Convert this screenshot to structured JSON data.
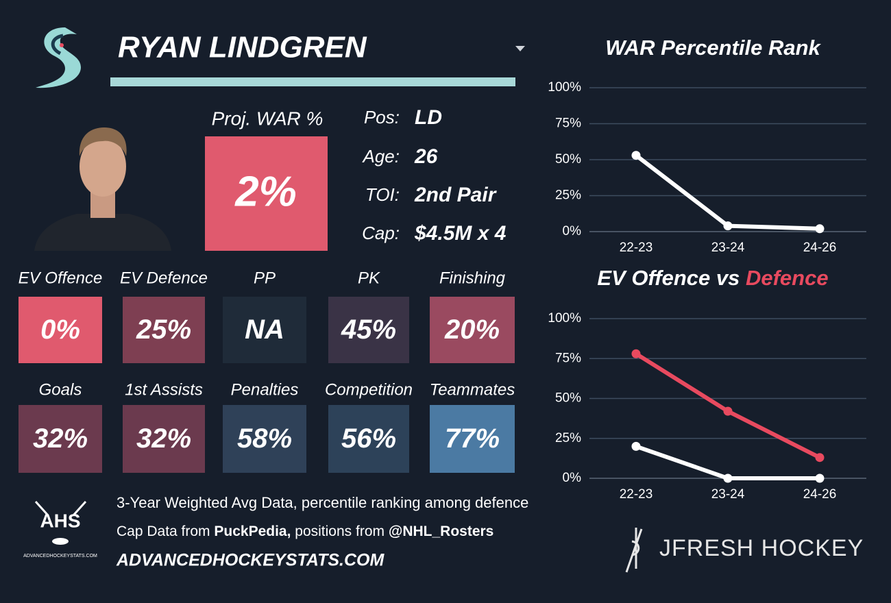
{
  "header": {
    "name": "RYAN LINDGREN"
  },
  "proj_war": {
    "label": "Proj. WAR %",
    "value": "2%",
    "color": "#e05a6e"
  },
  "info": [
    {
      "label": "Pos:",
      "value": "LD"
    },
    {
      "label": "Age:",
      "value": "26"
    },
    {
      "label": "TOI:",
      "value": "2nd Pair"
    },
    {
      "label": "Cap:",
      "value": "$4.5M x 4"
    }
  ],
  "tiles": [
    {
      "label": "EV Offence",
      "value": "0%",
      "color": "#e05a6e"
    },
    {
      "label": "EV Defence",
      "value": "25%",
      "color": "#7e3f52"
    },
    {
      "label": "PP",
      "value": "NA",
      "color": "#1f2b39"
    },
    {
      "label": "PK",
      "value": "45%",
      "color": "#3a3346"
    },
    {
      "label": "Finishing",
      "value": "20%",
      "color": "#9a4a60"
    },
    {
      "label": "Goals",
      "value": "32%",
      "color": "#6b3a4e"
    },
    {
      "label": "1st Assists",
      "value": "32%",
      "color": "#6b3a4e"
    },
    {
      "label": "Penalties",
      "value": "58%",
      "color": "#2f4158"
    },
    {
      "label": "Competition",
      "value": "56%",
      "color": "#2d4259"
    },
    {
      "label": "Teammates",
      "value": "77%",
      "color": "#4b7aa3"
    }
  ],
  "footer": {
    "logo": "AHS",
    "logo_caption": "ADVANCEDHOCKEYSTATS.COM",
    "line1": "3-Year Weighted Avg Data, percentile ranking among defence",
    "line2": [
      "Cap Data from ",
      "PuckPedia,",
      " positions from ",
      "@NHL_Rosters"
    ],
    "site": "ADVANCEDHOCKEYSTATS.COM",
    "brand": "JFRESH HOCKEY"
  },
  "chart_data": [
    {
      "type": "line",
      "title": "WAR Percentile Rank",
      "categories": [
        "22-23",
        "23-24",
        "24-26"
      ],
      "series": [
        {
          "color": "#ffffff",
          "values": [
            53,
            4,
            2
          ]
        }
      ],
      "ylim": [
        0,
        100
      ],
      "yticks": [
        {
          "value": 0,
          "label": "0%"
        },
        {
          "value": 25,
          "label": "25%"
        },
        {
          "value": 50,
          "label": "50%"
        },
        {
          "value": 75,
          "label": "75%"
        },
        {
          "value": 100,
          "label": "100%"
        }
      ],
      "grid": true
    },
    {
      "type": "line",
      "title": "EV Offence vs",
      "title_highlight": "Defence",
      "title_highlight_color": "#e84a5f",
      "categories": [
        "22-23",
        "23-24",
        "24-26"
      ],
      "series": [
        {
          "color": "#ffffff",
          "values": [
            20,
            0,
            0
          ]
        },
        {
          "color": "#e84a5f",
          "values": [
            78,
            42,
            13
          ]
        }
      ],
      "ylim": [
        0,
        100
      ],
      "yticks": [
        {
          "value": 0,
          "label": "0%"
        },
        {
          "value": 25,
          "label": "25%"
        },
        {
          "value": 50,
          "label": "50%"
        },
        {
          "value": 75,
          "label": "75%"
        },
        {
          "value": 100,
          "label": "100%"
        }
      ],
      "grid": true
    }
  ]
}
